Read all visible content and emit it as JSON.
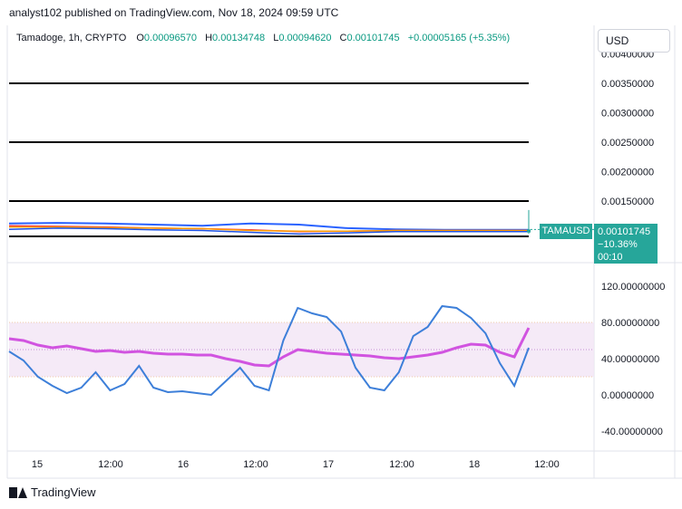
{
  "header": {
    "publisher": "analyst102 published on TradingView.com, Nov 18, 2024 09:59 UTC"
  },
  "legend": {
    "symbol": "Tamadoge, 1h, CRYPTO",
    "o_label": "O",
    "o_value": "0.00096570",
    "h_label": "H",
    "h_value": "0.00134748",
    "l_label": "L",
    "l_value": "0.00094620",
    "c_label": "C",
    "c_value": "0.00101745",
    "change": "+0.00005165 (+5.35%)"
  },
  "currency_button": "USD",
  "price_label": {
    "ticker": "TAMAUSD",
    "price": "0.00101745",
    "change_pct": "−10.36%",
    "countdown": "00:10",
    "color": "#26a69a"
  },
  "footer": {
    "logo_text": "TradingView"
  },
  "chart_data": [
    {
      "type": "line",
      "panel": "price",
      "y_ticks": [
        "0.00350000",
        "0.00300000",
        "0.00250000",
        "0.00200000",
        "0.00150000"
      ],
      "y_top_partial": "0.00400000",
      "horizontal_levels": [
        0.0035,
        0.0025,
        0.0015,
        0.0009
      ],
      "series": [
        {
          "name": "",
          "color": "#2962ff",
          "x": [
            0,
            20,
            40,
            60,
            80,
            100,
            120,
            140,
            160,
            180,
            200,
            215
          ],
          "y": [
            0.00112,
            0.00113,
            0.00112,
            0.0011,
            0.00108,
            0.00112,
            0.0011,
            0.00104,
            0.00102,
            0.00101,
            0.00101,
            0.00101
          ]
        },
        {
          "name": "",
          "color": "#f23645",
          "x": [
            0,
            20,
            40,
            60,
            80,
            100,
            120,
            140,
            160,
            180,
            200,
            215
          ],
          "y": [
            0.00108,
            0.00107,
            0.00106,
            0.00104,
            0.00103,
            0.00101,
            0.00098,
            0.00099,
            0.001,
            0.001,
            0.001,
            0.001
          ]
        },
        {
          "name": "",
          "color": "#ff9800",
          "x": [
            0,
            20,
            40,
            60,
            80,
            100,
            120,
            140,
            160,
            180,
            200,
            215
          ],
          "y": [
            0.00106,
            0.00106,
            0.00105,
            0.00104,
            0.00103,
            0.001,
            0.00099,
            0.00099,
            0.001,
            0.001,
            0.001,
            0.001
          ]
        },
        {
          "name": "",
          "color": "#1e53e5",
          "x": [
            0,
            20,
            40,
            60,
            80,
            100,
            120,
            140,
            160,
            180,
            200,
            215
          ],
          "y": [
            0.00102,
            0.00104,
            0.00103,
            0.00101,
            0.001,
            0.00097,
            0.00094,
            0.00096,
            0.00098,
            0.00098,
            0.00098,
            0.00098
          ]
        }
      ],
      "last_candle": {
        "open": 0.0009657,
        "high": 0.00134748,
        "low": 0.0009462,
        "close": 0.00101745
      }
    },
    {
      "type": "line",
      "panel": "stochastic_rsi",
      "y_ticks": [
        "120.00000000",
        "80.00000000",
        "40.00000000",
        "0.00000000",
        "-40.00000000"
      ],
      "ylim": [
        -50,
        140
      ],
      "bands": {
        "upper": 80,
        "lower": 20,
        "mid": 50
      },
      "series": [
        {
          "name": "",
          "color": "#d154e0",
          "x": [
            0,
            6,
            12,
            18,
            24,
            30,
            36,
            42,
            48,
            54,
            60,
            66,
            72,
            78,
            84,
            90,
            96,
            102,
            108,
            114,
            120,
            126,
            132,
            138,
            144,
            150,
            156,
            162,
            168,
            174,
            180,
            186,
            192,
            198,
            204,
            210,
            216
          ],
          "y": [
            62,
            60,
            55,
            52,
            54,
            51,
            48,
            49,
            47,
            48,
            46,
            45,
            45,
            44,
            44,
            40,
            37,
            33,
            32,
            42,
            50,
            48,
            46,
            45,
            44,
            43,
            41,
            40,
            42,
            44,
            47,
            52,
            56,
            55,
            47,
            42,
            74
          ]
        },
        {
          "name": "",
          "color": "#3d7fd9",
          "x": [
            0,
            6,
            12,
            18,
            24,
            30,
            36,
            42,
            48,
            54,
            60,
            66,
            72,
            78,
            84,
            90,
            96,
            102,
            108,
            114,
            120,
            126,
            132,
            138,
            144,
            150,
            156,
            162,
            168,
            174,
            180,
            186,
            192,
            198,
            204,
            210,
            216
          ],
          "y": [
            48,
            38,
            20,
            10,
            2,
            8,
            25,
            5,
            12,
            32,
            8,
            3,
            4,
            2,
            0,
            15,
            30,
            10,
            5,
            60,
            96,
            90,
            86,
            70,
            30,
            8,
            5,
            25,
            65,
            75,
            98,
            96,
            85,
            68,
            35,
            10,
            52
          ]
        }
      ]
    }
  ],
  "x_axis": {
    "labels": [
      "15",
      "12:00",
      "16",
      "12:00",
      "17",
      "12:00",
      "18",
      "12:00"
    ]
  }
}
